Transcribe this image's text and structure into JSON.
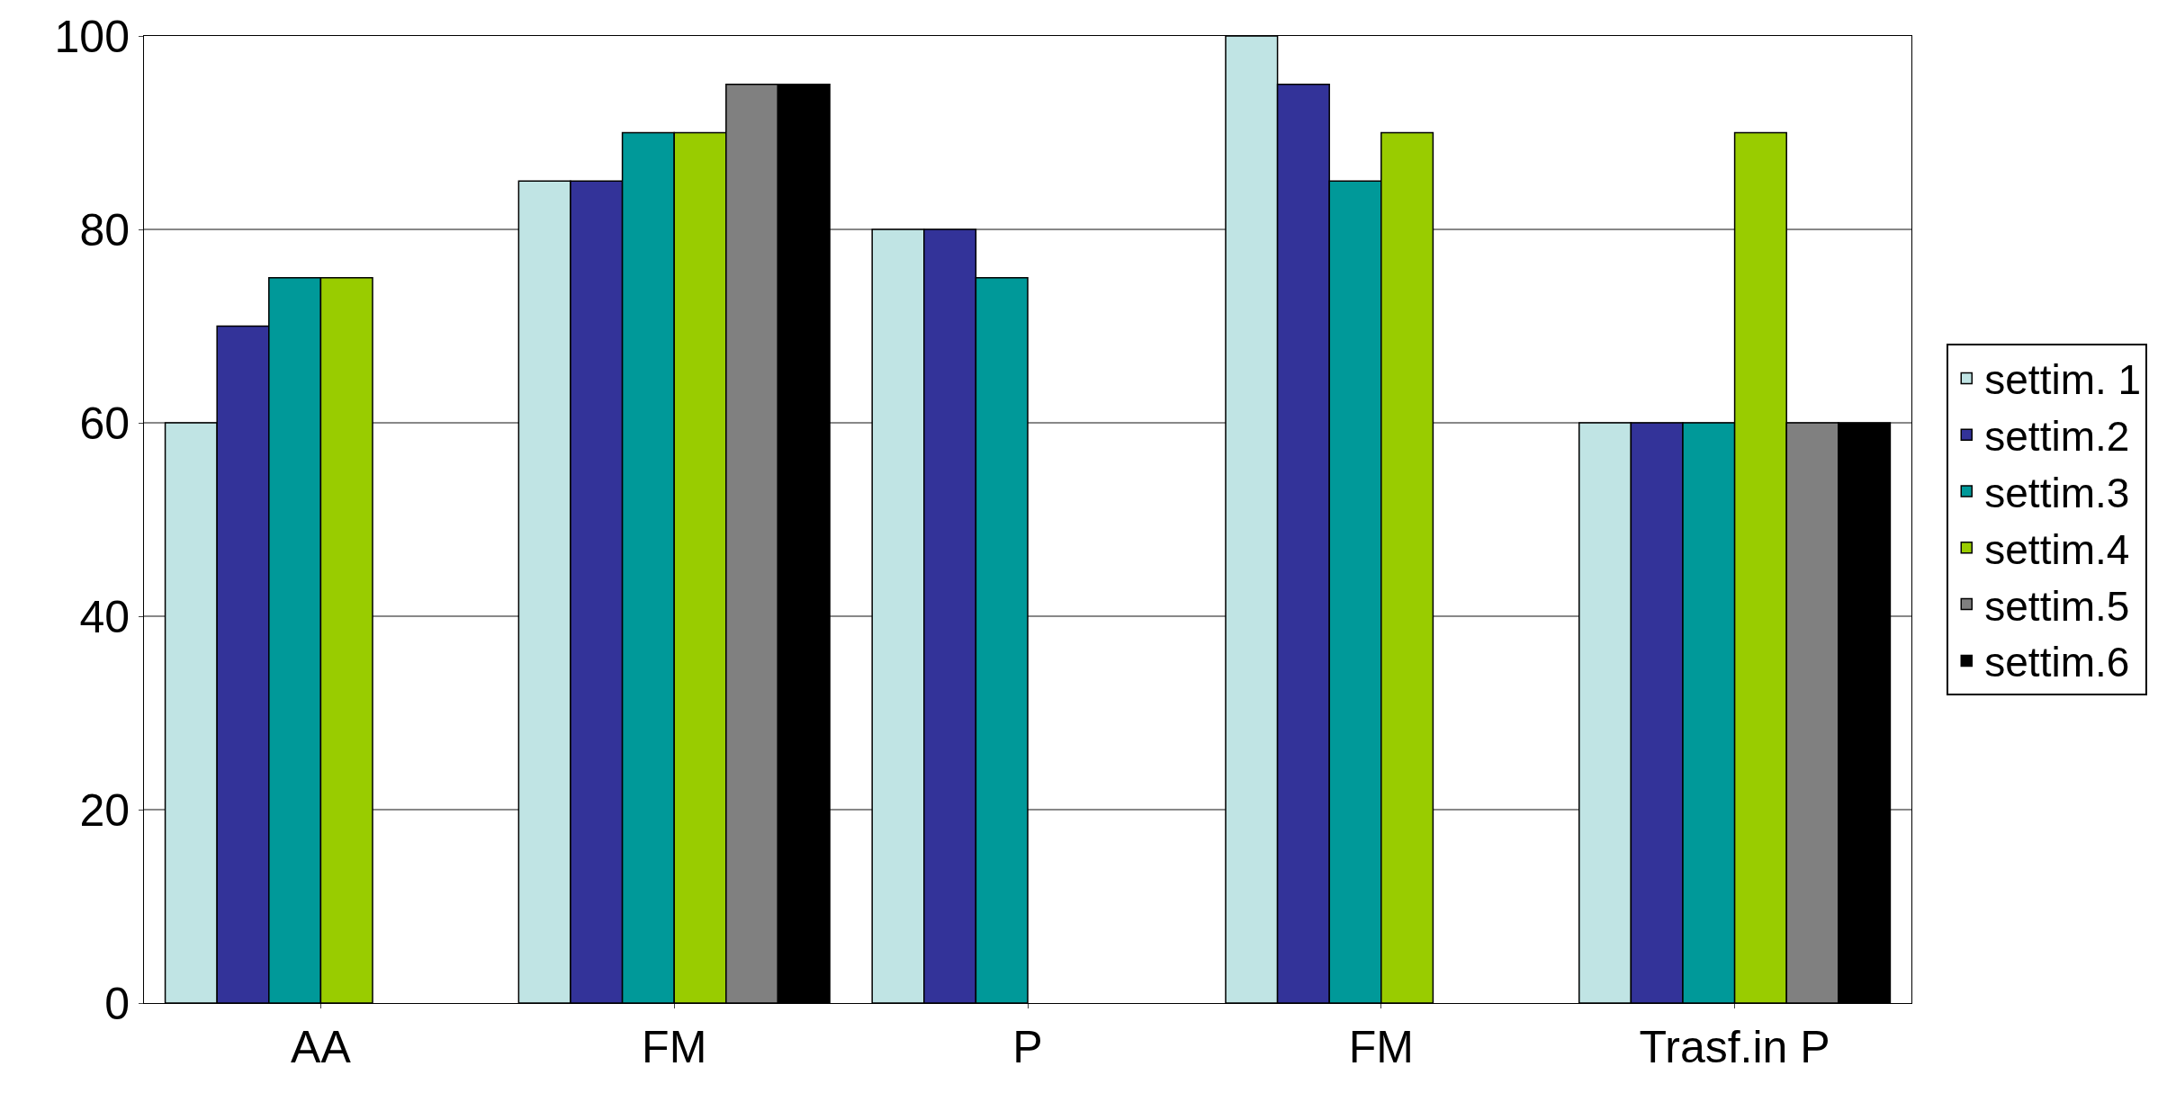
{
  "chart_data": {
    "type": "bar",
    "categories": [
      "AA",
      "FM",
      "P",
      "FM",
      "Trasf.in P"
    ],
    "series": [
      {
        "name": "settim. 1",
        "color": "#c0e4e4",
        "values": [
          60,
          85,
          80,
          100,
          60
        ]
      },
      {
        "name": "settim.2",
        "color": "#333399",
        "values": [
          70,
          85,
          80,
          95,
          60
        ]
      },
      {
        "name": "settim.3",
        "color": "#009999",
        "values": [
          75,
          90,
          75,
          85,
          60
        ]
      },
      {
        "name": "settim.4",
        "color": "#99cc00",
        "values": [
          75,
          90,
          null,
          90,
          90
        ]
      },
      {
        "name": "settim.5",
        "color": "#808080",
        "values": [
          null,
          95,
          null,
          null,
          60
        ]
      },
      {
        "name": "settim.6",
        "color": "#000000",
        "values": [
          null,
          95,
          null,
          null,
          60
        ]
      }
    ],
    "ylim": [
      0,
      100
    ],
    "yticks": [
      0,
      20,
      40,
      60,
      80,
      100
    ],
    "grid": "y",
    "legend": "right"
  }
}
